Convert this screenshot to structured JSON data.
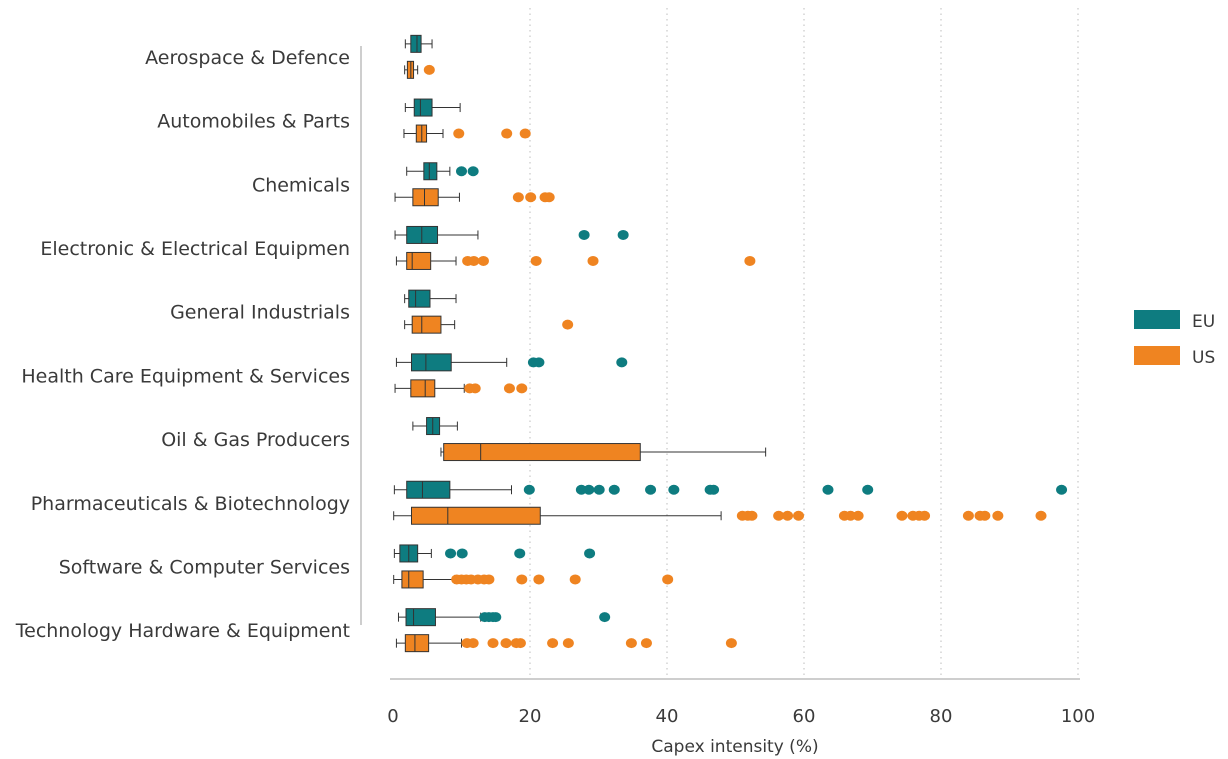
{
  "chart_data": {
    "type": "boxplot",
    "title": "",
    "xlabel": "Capex intensity (%)",
    "xlim": [
      0,
      100
    ],
    "x_ticks": [
      0,
      20,
      40,
      60,
      80,
      100
    ],
    "grid": "vertical dotted",
    "legend_position": "right",
    "series": [
      {
        "name": "EU",
        "color": "#0e7c80"
      },
      {
        "name": "US",
        "color": "#ef8421"
      }
    ],
    "categories": [
      {
        "label": "Aerospace & Defence",
        "EU": {
          "whisker_low": 1.8,
          "q1": 2.6,
          "median": 3.5,
          "q3": 4.1,
          "whisker_high": 5.7,
          "outliers": []
        },
        "US": {
          "whisker_low": 1.7,
          "q1": 2.1,
          "median": 2.6,
          "q3": 3.0,
          "whisker_high": 3.6,
          "outliers": [
            5.3
          ]
        }
      },
      {
        "label": "Automobiles & Parts",
        "EU": {
          "whisker_low": 1.8,
          "q1": 3.1,
          "median": 4.0,
          "q3": 5.7,
          "whisker_high": 9.8,
          "outliers": []
        },
        "US": {
          "whisker_low": 1.6,
          "q1": 3.4,
          "median": 4.2,
          "q3": 4.9,
          "whisker_high": 7.3,
          "outliers": [
            9.6,
            16.6,
            19.3
          ]
        }
      },
      {
        "label": "Chemicals",
        "EU": {
          "whisker_low": 2.0,
          "q1": 4.5,
          "median": 5.3,
          "q3": 6.4,
          "whisker_high": 8.3,
          "outliers": [
            10.0,
            11.7
          ]
        },
        "US": {
          "whisker_low": 0.3,
          "q1": 2.9,
          "median": 4.6,
          "q3": 6.6,
          "whisker_high": 9.7,
          "outliers": [
            18.3,
            20.1,
            22.2,
            22.8
          ]
        }
      },
      {
        "label": "Electronic & Electrical Equipmen",
        "EU": {
          "whisker_low": 0.3,
          "q1": 2.0,
          "median": 4.2,
          "q3": 6.5,
          "whisker_high": 12.4,
          "outliers": [
            27.9,
            33.6
          ]
        },
        "US": {
          "whisker_low": 0.5,
          "q1": 2.0,
          "median": 2.8,
          "q3": 5.5,
          "whisker_high": 9.2,
          "outliers": [
            10.9,
            11.8,
            13.2,
            20.9,
            29.2,
            52.1
          ]
        }
      },
      {
        "label": "General Industrials",
        "EU": {
          "whisker_low": 1.7,
          "q1": 2.3,
          "median": 3.3,
          "q3": 5.4,
          "whisker_high": 9.2,
          "outliers": []
        },
        "US": {
          "whisker_low": 1.7,
          "q1": 2.8,
          "median": 4.2,
          "q3": 7.0,
          "whisker_high": 9.0,
          "outliers": [
            25.5
          ]
        }
      },
      {
        "label": "Health Care Equipment & Services",
        "EU": {
          "whisker_low": 0.5,
          "q1": 2.7,
          "median": 4.8,
          "q3": 8.5,
          "whisker_high": 16.6,
          "outliers": [
            20.5,
            21.3,
            33.4
          ]
        },
        "US": {
          "whisker_low": 0.3,
          "q1": 2.6,
          "median": 4.7,
          "q3": 6.1,
          "whisker_high": 10.4,
          "outliers": [
            11.2,
            12.0,
            17.0,
            18.8
          ]
        }
      },
      {
        "label": "Oil & Gas Producers",
        "EU": {
          "whisker_low": 2.9,
          "q1": 4.9,
          "median": 5.8,
          "q3": 6.8,
          "whisker_high": 9.4,
          "outliers": []
        },
        "US": {
          "whisker_low": 7.0,
          "q1": 7.4,
          "median": 12.8,
          "q3": 36.1,
          "whisker_high": 54.4,
          "outliers": []
        }
      },
      {
        "label": "Pharmaceuticals & Biotechnology",
        "EU": {
          "whisker_low": 0.2,
          "q1": 2.0,
          "median": 4.3,
          "q3": 8.3,
          "whisker_high": 17.3,
          "outliers": [
            19.9,
            27.5,
            28.6,
            30.1,
            32.3,
            37.6,
            41.0,
            46.3,
            46.8,
            63.5,
            69.3,
            97.6
          ]
        },
        "US": {
          "whisker_low": 0.1,
          "q1": 2.7,
          "median": 8.0,
          "q3": 21.5,
          "whisker_high": 47.9,
          "outliers": [
            51.0,
            51.8,
            52.4,
            56.3,
            57.6,
            59.2,
            65.9,
            66.8,
            67.9,
            74.3,
            75.9,
            76.8,
            77.6,
            84.0,
            85.7,
            86.4,
            88.3,
            94.6
          ]
        }
      },
      {
        "label": "Software & Computer Services",
        "EU": {
          "whisker_low": 0.2,
          "q1": 1.0,
          "median": 2.3,
          "q3": 3.6,
          "whisker_high": 5.6,
          "outliers": [
            8.4,
            10.1,
            18.5,
            28.7
          ]
        },
        "US": {
          "whisker_low": 0.1,
          "q1": 1.3,
          "median": 2.3,
          "q3": 4.4,
          "whisker_high": 9.0,
          "outliers": [
            9.3,
            10.0,
            10.7,
            11.4,
            12.4,
            13.3,
            14.0,
            18.8,
            21.3,
            26.6,
            40.1
          ]
        }
      },
      {
        "label": "Technology Hardware & Equipment",
        "EU": {
          "whisker_low": 0.8,
          "q1": 1.9,
          "median": 3.0,
          "q3": 6.2,
          "whisker_high": 12.8,
          "outliers": [
            13.4,
            14.0,
            14.6,
            15.0,
            30.9
          ]
        },
        "US": {
          "whisker_low": 0.5,
          "q1": 1.8,
          "median": 3.2,
          "q3": 5.2,
          "whisker_high": 10.0,
          "outliers": [
            10.8,
            11.7,
            14.6,
            16.5,
            18.0,
            18.6,
            23.3,
            25.6,
            34.8,
            37.0,
            49.4
          ]
        }
      }
    ]
  }
}
